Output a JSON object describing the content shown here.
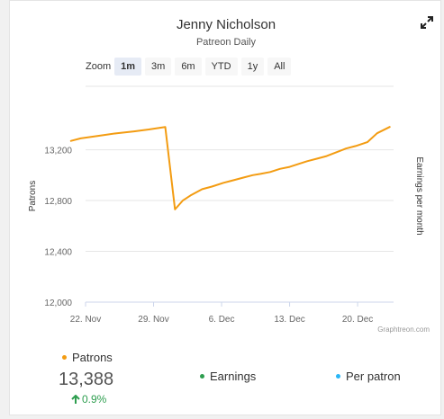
{
  "header": {
    "title": "Jenny Nicholson",
    "subtitle": "Patreon Daily"
  },
  "zoom": {
    "label": "Zoom",
    "buttons": [
      "1m",
      "3m",
      "6m",
      "YTD",
      "1y",
      "All"
    ],
    "active": "1m"
  },
  "chart_data": {
    "type": "line",
    "ylabel": "Patrons",
    "y2label": "Earnings per month",
    "ylim": [
      12000,
      13700
    ],
    "yticks": [
      12000,
      12400,
      12800,
      13200
    ],
    "ytick_labels": [
      "12,000",
      "12,400",
      "12,800",
      "13,200"
    ],
    "x_ticks": [
      "22. Nov",
      "29. Nov",
      "6. Dec",
      "13. Dec",
      "20. Dec"
    ],
    "x_range": [
      0,
      31.7
    ],
    "x_tick_positions": [
      0,
      7,
      14,
      21,
      28
    ],
    "grid": true,
    "credit": "Graphtreon.com",
    "series": [
      {
        "name": "Patrons",
        "color": "#f39c12",
        "x": [
          -1.5,
          -0.5,
          1.3,
          3.2,
          5,
          6.5,
          8.2,
          9.2,
          10,
          10.8,
          12,
          13,
          14.2,
          15.2,
          16.2,
          17.2,
          18,
          19,
          20,
          21,
          22,
          22.8,
          23.8,
          24.8,
          25.8,
          26.8,
          27.8,
          29,
          30,
          31.3
        ],
        "y": [
          13270,
          13290,
          13310,
          13330,
          13345,
          13360,
          13380,
          12730,
          12800,
          12840,
          12890,
          12910,
          12940,
          12960,
          12980,
          13000,
          13010,
          13025,
          13050,
          13065,
          13090,
          13110,
          13130,
          13150,
          13180,
          13210,
          13230,
          13260,
          13330,
          13380
        ]
      }
    ]
  },
  "legend": {
    "patrons": {
      "label": "Patrons",
      "value": "13,388",
      "change": "0.9%",
      "color": "#f39c12"
    },
    "earnings": {
      "label": "Earnings",
      "color": "#2e9e4f"
    },
    "per_patron": {
      "label": "Per patron",
      "color": "#29b6f6"
    }
  }
}
